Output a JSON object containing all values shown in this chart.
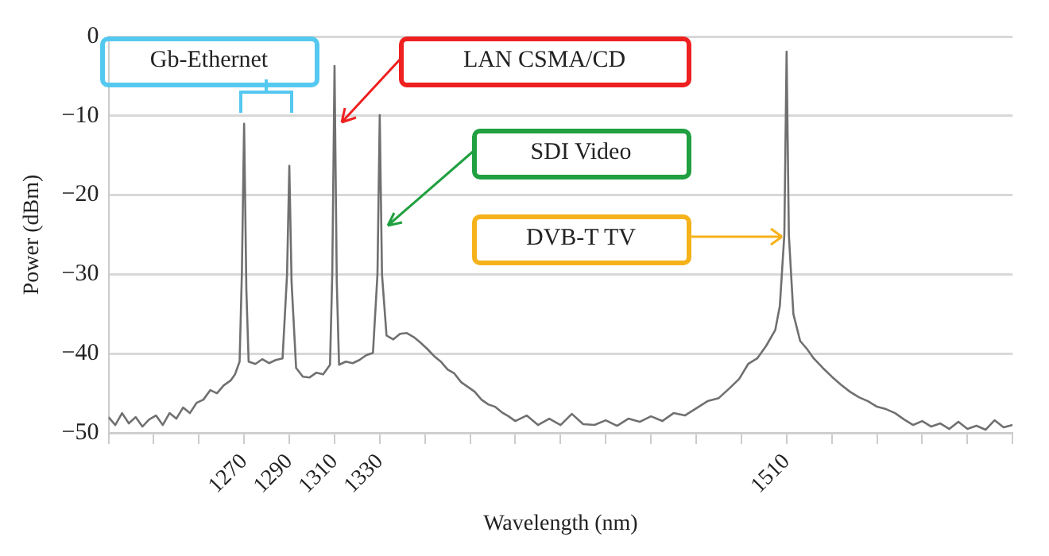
{
  "chart_data": {
    "type": "line",
    "xlabel": "Wavelength (nm)",
    "ylabel": "Power (dBm)",
    "xlim": [
      1210,
      1610
    ],
    "xticks": [
      {
        "value": 1210,
        "label": null
      },
      {
        "value": 1230,
        "label": null
      },
      {
        "value": 1250,
        "label": null
      },
      1270,
      1290,
      1310,
      1330,
      {
        "value": 1350,
        "label": null
      },
      {
        "value": 1370,
        "label": null
      },
      {
        "value": 1390,
        "label": null
      },
      {
        "value": 1410,
        "label": null
      },
      {
        "value": 1430,
        "label": null
      },
      {
        "value": 1450,
        "label": null
      },
      {
        "value": 1470,
        "label": null
      },
      {
        "value": 1490,
        "label": null
      },
      1510,
      {
        "value": 1530,
        "label": null
      },
      {
        "value": 1550,
        "label": null
      },
      {
        "value": 1570,
        "label": null
      },
      {
        "value": 1590,
        "label": null
      },
      {
        "value": 1610,
        "label": null
      }
    ],
    "ylim": [
      -50,
      0
    ],
    "yticks": [
      {
        "value": -50,
        "label": "−50"
      },
      {
        "value": -40,
        "label": "−40"
      },
      {
        "value": -30,
        "label": "−30"
      },
      {
        "value": -20,
        "label": "−20"
      },
      {
        "value": -10,
        "label": "−10"
      },
      0
    ],
    "grid": "y",
    "marker": "none",
    "line_style": "solid",
    "series": [
      {
        "color": "#707070",
        "x": [
          1210,
          1213,
          1216,
          1219,
          1222,
          1225,
          1228,
          1231,
          1234,
          1237,
          1240,
          1243,
          1246,
          1249,
          1252,
          1255,
          1258,
          1261,
          1264,
          1266,
          1268,
          1269,
          1270,
          1271,
          1272,
          1275,
          1278,
          1281,
          1284,
          1287,
          1289,
          1290,
          1291,
          1293,
          1296,
          1299,
          1302,
          1305,
          1308,
          1309,
          1310,
          1311,
          1312,
          1315,
          1318,
          1321,
          1324,
          1327,
          1329,
          1330,
          1331,
          1333,
          1336,
          1339,
          1342,
          1345,
          1348,
          1351,
          1354,
          1357,
          1360,
          1363,
          1366,
          1369,
          1372,
          1375,
          1378,
          1381,
          1384,
          1387,
          1390,
          1395,
          1400,
          1405,
          1410,
          1415,
          1420,
          1425,
          1430,
          1435,
          1440,
          1445,
          1450,
          1455,
          1460,
          1465,
          1470,
          1475,
          1480,
          1485,
          1489,
          1493,
          1497,
          1501,
          1505,
          1507,
          1509,
          1510,
          1511,
          1513,
          1516,
          1519,
          1522,
          1526,
          1530,
          1534,
          1538,
          1542,
          1546,
          1550,
          1554,
          1558,
          1562,
          1566,
          1570,
          1574,
          1578,
          1582,
          1586,
          1590,
          1594,
          1598,
          1602,
          1606,
          1610
        ],
        "values": [
          -48,
          -49,
          -47.5,
          -48.8,
          -48,
          -49.2,
          -48.3,
          -47.8,
          -49,
          -47.5,
          -48.2,
          -46.8,
          -47.5,
          -46.2,
          -45.8,
          -44.6,
          -45,
          -44,
          -43.4,
          -42.6,
          -41,
          -30,
          -11,
          -32,
          -41,
          -41.3,
          -40.7,
          -41.2,
          -40.8,
          -40.6,
          -30,
          -16.3,
          -31,
          -41.8,
          -42.9,
          -43,
          -42.4,
          -42.6,
          -41.4,
          -30,
          -3.7,
          -31,
          -41.4,
          -41,
          -41.2,
          -40.8,
          -40.2,
          -39.9,
          -30,
          -9.9,
          -30,
          -37.7,
          -38.2,
          -37.5,
          -37.4,
          -37.9,
          -38.6,
          -39.4,
          -40.3,
          -41,
          -42,
          -42.5,
          -43.6,
          -44.2,
          -44.8,
          -45.8,
          -46.4,
          -46.7,
          -47.4,
          -47.9,
          -48.5,
          -47.8,
          -49,
          -48.2,
          -49,
          -47.6,
          -48.9,
          -49,
          -48.4,
          -49.1,
          -48.2,
          -48.6,
          -47.9,
          -48.5,
          -47.5,
          -47.8,
          -46.9,
          -46,
          -45.6,
          -44.3,
          -43.2,
          -41.3,
          -40.6,
          -39,
          -37,
          -34,
          -25,
          -1.9,
          -25,
          -35,
          -38.4,
          -39.4,
          -40.6,
          -41.8,
          -42.9,
          -43.9,
          -44.8,
          -45.5,
          -46,
          -46.7,
          -47,
          -47.5,
          -48.3,
          -49,
          -48.5,
          -49.2,
          -48.8,
          -49.5,
          -48.6,
          -49.5,
          -49.1,
          -49.6,
          -48.4,
          -49.3,
          -49
        ]
      }
    ],
    "annotations": [
      "Gb-Ethernet",
      "LAN CSMA/CD",
      "SDI Video",
      "DVB-T TV"
    ]
  }
}
